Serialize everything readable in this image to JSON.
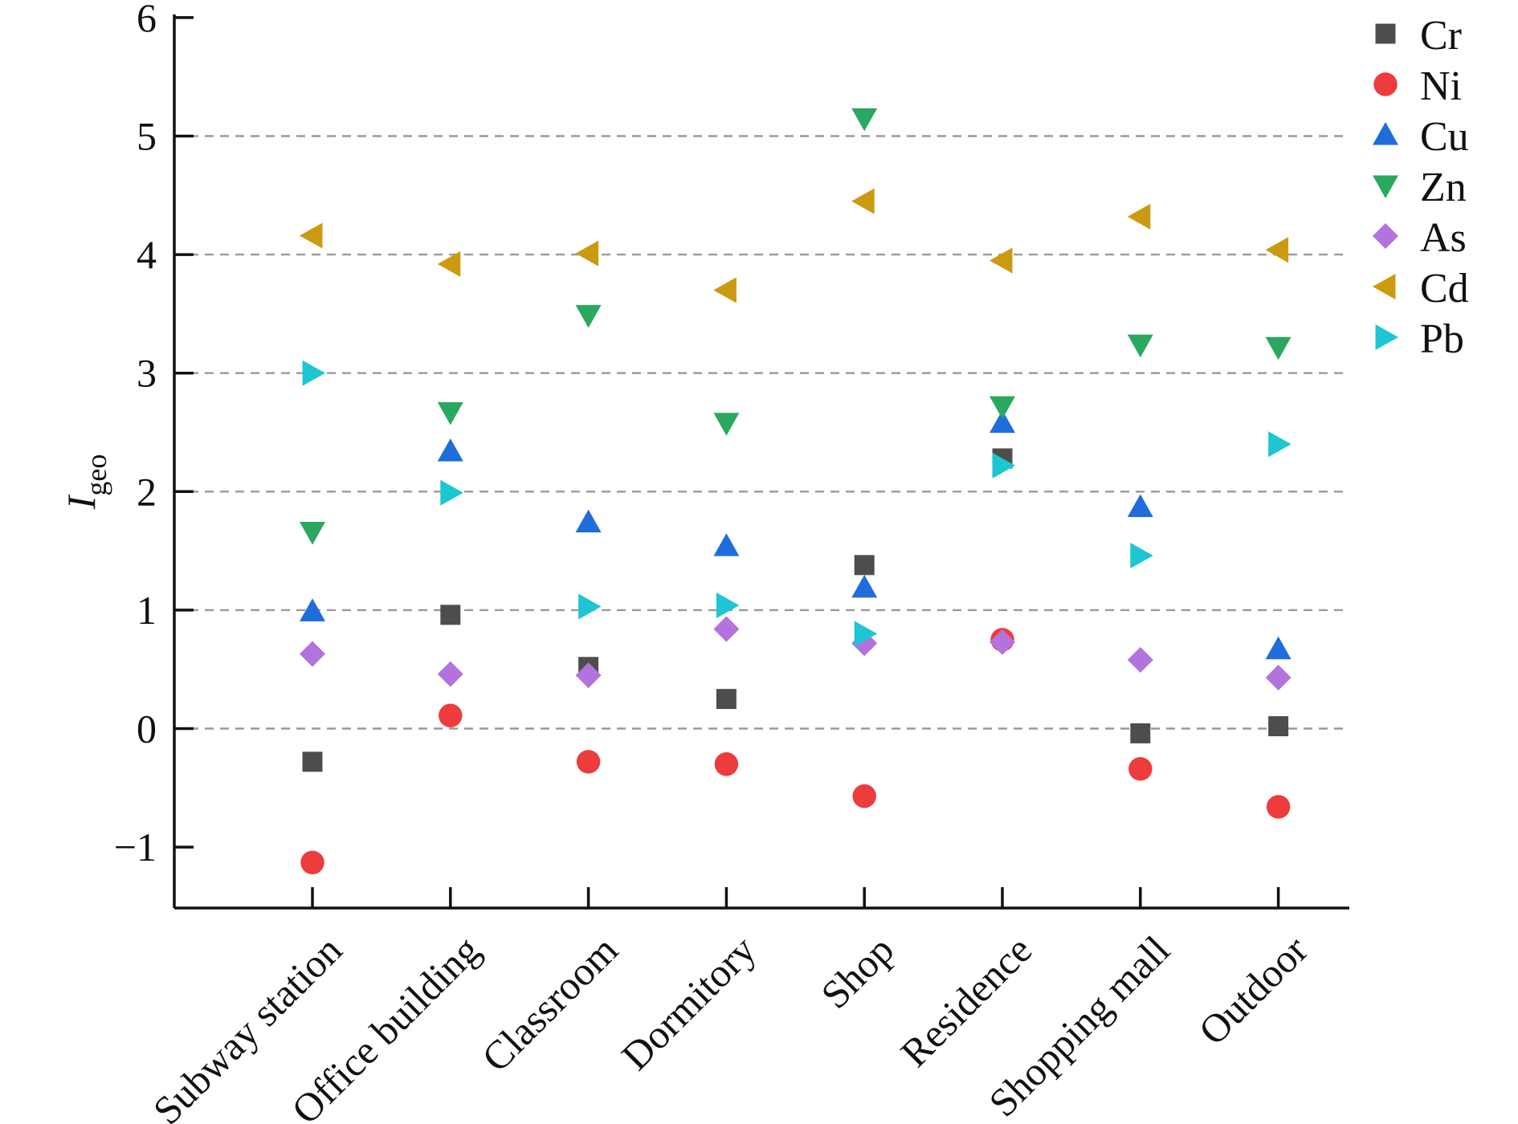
{
  "chart_data": {
    "type": "scatter",
    "ylabel": "I",
    "ylabel_sub": "geo",
    "categories": [
      "Subway station",
      "Office building",
      "Classroom",
      "Dormitory",
      "Shop",
      "Residence",
      "Shopping mall",
      "Outdoor"
    ],
    "ylim": [
      -1.5,
      6
    ],
    "yticks": [
      -1,
      0,
      1,
      2,
      3,
      4,
      5,
      6
    ],
    "ytick_labels": [
      "−1",
      "0",
      "1",
      "2",
      "3",
      "4",
      "5",
      "6"
    ],
    "grid": "dashed horizontal at 0 to 5",
    "legend_position": "top-right",
    "series": [
      {
        "name": "Cr",
        "marker": "square",
        "color": "#4d4d4d",
        "values": [
          -0.28,
          0.96,
          0.52,
          0.25,
          1.38,
          2.28,
          -0.04,
          0.02
        ]
      },
      {
        "name": "Ni",
        "marker": "circle",
        "color": "#ee3b3b",
        "values": [
          -1.13,
          0.11,
          -0.28,
          -0.3,
          -0.57,
          0.75,
          -0.34,
          -0.66
        ]
      },
      {
        "name": "Cu",
        "marker": "triangle-up",
        "color": "#1f6ddb",
        "values": [
          0.99,
          2.34,
          1.74,
          1.54,
          1.19,
          2.58,
          1.87,
          0.67
        ]
      },
      {
        "name": "Zn",
        "marker": "triangle-down",
        "color": "#2aa860",
        "values": [
          1.66,
          2.67,
          3.49,
          2.58,
          5.15,
          2.72,
          3.24,
          3.22
        ]
      },
      {
        "name": "As",
        "marker": "diamond",
        "color": "#b273dd",
        "values": [
          0.63,
          0.46,
          0.45,
          0.84,
          0.72,
          0.73,
          0.58,
          0.43
        ]
      },
      {
        "name": "Cd",
        "marker": "triangle-left",
        "color": "#cc9a10",
        "values": [
          4.16,
          3.92,
          4.01,
          3.7,
          4.45,
          3.95,
          4.32,
          4.04
        ]
      },
      {
        "name": "Pb",
        "marker": "triangle-right",
        "color": "#1dc6d2",
        "values": [
          3.0,
          1.99,
          1.03,
          1.04,
          0.8,
          2.22,
          1.46,
          2.4
        ]
      }
    ]
  }
}
